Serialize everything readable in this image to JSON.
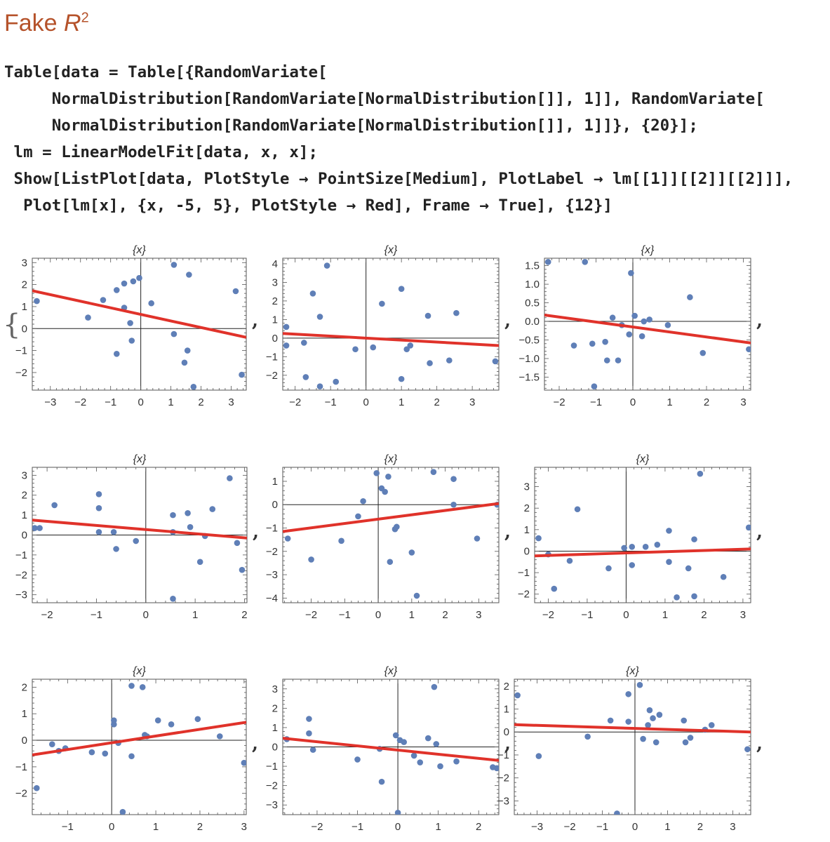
{
  "heading": {
    "main": "Fake ",
    "var": "R",
    "exp": "2"
  },
  "code_lines": [
    "Table[data = Table[{RandomVariate[",
    "     NormalDistribution[RandomVariate[NormalDistribution[]], 1]], RandomVariate[",
    "     NormalDistribution[RandomVariate[NormalDistribution[]], 1]]}, {20}];",
    " lm = LinearModelFit[data, x, x];",
    " Show[ListPlot[data, PlotStyle → PointSize[Medium], PlotLabel → lm[[1]][[2]][[2]]],",
    "  Plot[lm[x], {x, -5, 5}, PlotStyle → Red], Frame → True], {12}]"
  ],
  "output": {
    "open_brace": "{",
    "separator": ","
  },
  "colors": {
    "point": "#5f7fb7",
    "line": "#e0322a",
    "frame": "#555555",
    "axis": "#222222"
  },
  "chart_data": [
    {
      "type": "scatter",
      "title": "{x}",
      "xlim": [
        -3.6,
        3.5
      ],
      "ylim": [
        -2.8,
        3.2
      ],
      "xticks": [
        -3,
        -2,
        -1,
        0,
        1,
        2,
        3
      ],
      "yticks": [
        -2,
        -1,
        0,
        1,
        2,
        3
      ],
      "points": [
        [
          -3.45,
          1.25
        ],
        [
          -1.75,
          0.5
        ],
        [
          -1.25,
          1.3
        ],
        [
          -0.8,
          1.75
        ],
        [
          -0.55,
          2.05
        ],
        [
          -0.25,
          2.15
        ],
        [
          -0.05,
          2.3
        ],
        [
          -0.55,
          0.95
        ],
        [
          -0.35,
          0.25
        ],
        [
          -0.3,
          -0.55
        ],
        [
          -0.8,
          -1.15
        ],
        [
          0.35,
          1.15
        ],
        [
          1.1,
          2.9
        ],
        [
          1.6,
          2.45
        ],
        [
          1.1,
          -0.25
        ],
        [
          1.55,
          -1.0
        ],
        [
          1.45,
          -1.55
        ],
        [
          1.75,
          -2.65
        ],
        [
          3.15,
          1.7
        ],
        [
          3.35,
          -2.1
        ]
      ],
      "line": [
        [
          -3.6,
          1.72
        ],
        [
          3.5,
          -0.4
        ]
      ]
    },
    {
      "type": "scatter",
      "title": "{x}",
      "xlim": [
        -2.35,
        3.75
      ],
      "ylim": [
        -2.8,
        4.3
      ],
      "xticks": [
        -2,
        -1,
        0,
        1,
        2,
        3
      ],
      "yticks": [
        -2,
        -1,
        0,
        1,
        2,
        3,
        4
      ],
      "points": [
        [
          -2.25,
          0.6
        ],
        [
          -2.25,
          -0.4
        ],
        [
          -1.5,
          2.4
        ],
        [
          -1.3,
          1.15
        ],
        [
          -1.1,
          3.9
        ],
        [
          -1.75,
          -0.25
        ],
        [
          -1.7,
          -2.1
        ],
        [
          -1.3,
          -2.6
        ],
        [
          -0.85,
          -2.35
        ],
        [
          -0.3,
          -0.6
        ],
        [
          0.2,
          -0.5
        ],
        [
          0.45,
          1.85
        ],
        [
          1.0,
          2.65
        ],
        [
          1.0,
          -2.2
        ],
        [
          1.15,
          -0.6
        ],
        [
          1.25,
          -0.4
        ],
        [
          1.75,
          1.2
        ],
        [
          1.8,
          -1.35
        ],
        [
          2.55,
          1.35
        ],
        [
          2.35,
          -1.2
        ],
        [
          3.65,
          -1.25
        ]
      ],
      "line": [
        [
          -2.35,
          0.25
        ],
        [
          3.75,
          -0.4
        ]
      ]
    },
    {
      "type": "scatter",
      "title": "{x}",
      "xlim": [
        -2.4,
        3.2
      ],
      "ylim": [
        -1.85,
        1.7
      ],
      "xticks": [
        -2,
        -1,
        0,
        1,
        2,
        3
      ],
      "yticks": [
        -1.5,
        -1.0,
        -0.5,
        0.0,
        0.5,
        1.0,
        1.5
      ],
      "points": [
        [
          -2.3,
          1.6
        ],
        [
          -1.6,
          -0.65
        ],
        [
          -1.3,
          1.6
        ],
        [
          -1.1,
          -0.6
        ],
        [
          -1.05,
          -1.75
        ],
        [
          -0.75,
          -0.55
        ],
        [
          -0.7,
          -1.05
        ],
        [
          -0.55,
          0.1
        ],
        [
          -0.4,
          -1.05
        ],
        [
          -0.3,
          -0.1
        ],
        [
          -0.1,
          -0.35
        ],
        [
          0.05,
          0.15
        ],
        [
          -0.05,
          1.3
        ],
        [
          0.25,
          -0.4
        ],
        [
          0.3,
          0.0
        ],
        [
          0.45,
          0.05
        ],
        [
          0.95,
          -0.1
        ],
        [
          1.55,
          0.65
        ],
        [
          1.9,
          -0.85
        ],
        [
          3.15,
          -0.75
        ]
      ],
      "line": [
        [
          -2.4,
          0.17
        ],
        [
          3.2,
          -0.58
        ]
      ]
    },
    {
      "type": "scatter",
      "title": "{x}",
      "xlim": [
        -2.3,
        2.05
      ],
      "ylim": [
        -3.4,
        3.4
      ],
      "xticks": [
        -2,
        -1,
        0,
        1,
        2
      ],
      "yticks": [
        -3,
        -2,
        -1,
        0,
        1,
        2,
        3
      ],
      "points": [
        [
          -2.25,
          0.35
        ],
        [
          -2.15,
          0.35
        ],
        [
          -1.85,
          1.5
        ],
        [
          -0.95,
          2.05
        ],
        [
          -0.95,
          1.35
        ],
        [
          -0.95,
          0.15
        ],
        [
          -0.65,
          0.15
        ],
        [
          -0.6,
          -0.7
        ],
        [
          -0.2,
          -0.3
        ],
        [
          0.55,
          1.0
        ],
        [
          0.55,
          0.15
        ],
        [
          0.85,
          1.1
        ],
        [
          0.9,
          0.4
        ],
        [
          1.1,
          -1.35
        ],
        [
          1.2,
          -0.05
        ],
        [
          1.35,
          1.3
        ],
        [
          1.7,
          2.85
        ],
        [
          1.85,
          -0.4
        ],
        [
          1.95,
          -1.75
        ],
        [
          0.55,
          -3.2
        ]
      ],
      "line": [
        [
          -2.3,
          0.75
        ],
        [
          2.05,
          -0.15
        ]
      ]
    },
    {
      "type": "scatter",
      "title": "{x}",
      "xlim": [
        -2.85,
        3.6
      ],
      "ylim": [
        -4.2,
        1.6
      ],
      "xticks": [
        -2,
        -1,
        0,
        1,
        2,
        3
      ],
      "yticks": [
        -4,
        -3,
        -2,
        -1,
        0,
        1
      ],
      "points": [
        [
          -2.7,
          -1.45
        ],
        [
          -2.0,
          -2.35
        ],
        [
          -1.1,
          -1.55
        ],
        [
          -0.6,
          -0.5
        ],
        [
          -0.45,
          0.15
        ],
        [
          -0.05,
          1.35
        ],
        [
          0.1,
          0.7
        ],
        [
          0.2,
          0.55
        ],
        [
          0.3,
          1.2
        ],
        [
          0.35,
          -2.45
        ],
        [
          0.5,
          -1.05
        ],
        [
          0.55,
          -0.95
        ],
        [
          1.0,
          -2.05
        ],
        [
          1.15,
          -3.9
        ],
        [
          1.65,
          1.4
        ],
        [
          2.25,
          1.1
        ],
        [
          2.95,
          -1.45
        ],
        [
          2.25,
          0.0
        ],
        [
          3.55,
          0.0
        ]
      ],
      "line": [
        [
          -2.85,
          -1.15
        ],
        [
          3.6,
          0.05
        ]
      ]
    },
    {
      "type": "scatter",
      "title": "{x}",
      "xlim": [
        -2.35,
        3.2
      ],
      "ylim": [
        -2.4,
        3.9
      ],
      "xticks": [
        -2,
        -1,
        0,
        1,
        2,
        3
      ],
      "yticks": [
        -2,
        -1,
        0,
        1,
        2,
        3
      ],
      "points": [
        [
          -2.25,
          0.6
        ],
        [
          -2.0,
          -0.15
        ],
        [
          -1.85,
          -1.75
        ],
        [
          -1.45,
          -0.45
        ],
        [
          -1.25,
          1.95
        ],
        [
          -0.45,
          -0.8
        ],
        [
          -0.05,
          0.15
        ],
        [
          0.15,
          0.2
        ],
        [
          0.15,
          -0.65
        ],
        [
          0.5,
          0.2
        ],
        [
          0.8,
          0.3
        ],
        [
          1.1,
          0.95
        ],
        [
          1.1,
          -0.5
        ],
        [
          1.3,
          -2.15
        ],
        [
          1.6,
          -0.8
        ],
        [
          1.75,
          0.55
        ],
        [
          1.75,
          -2.1
        ],
        [
          1.9,
          3.6
        ],
        [
          2.5,
          -1.2
        ],
        [
          3.15,
          1.1
        ]
      ],
      "line": [
        [
          -2.35,
          -0.22
        ],
        [
          3.2,
          0.1
        ]
      ]
    },
    {
      "type": "scatter",
      "title": "{x}",
      "xlim": [
        -1.8,
        3.05
      ],
      "ylim": [
        -2.8,
        2.3
      ],
      "xticks": [
        -1,
        0,
        1,
        2,
        3
      ],
      "yticks": [
        -2,
        -1,
        0,
        1,
        2
      ],
      "points": [
        [
          -1.7,
          -1.8
        ],
        [
          -1.35,
          -0.15
        ],
        [
          -1.2,
          -0.4
        ],
        [
          -1.05,
          -0.3
        ],
        [
          -0.45,
          -0.45
        ],
        [
          -0.15,
          -0.5
        ],
        [
          0.05,
          0.6
        ],
        [
          0.05,
          0.75
        ],
        [
          0.15,
          -0.1
        ],
        [
          0.25,
          -2.7
        ],
        [
          0.45,
          -0.6
        ],
        [
          0.45,
          2.05
        ],
        [
          0.7,
          2.0
        ],
        [
          0.75,
          0.2
        ],
        [
          0.8,
          0.15
        ],
        [
          1.05,
          0.75
        ],
        [
          1.35,
          0.6
        ],
        [
          1.95,
          0.8
        ],
        [
          2.45,
          0.15
        ],
        [
          3.0,
          -0.85
        ]
      ],
      "line": [
        [
          -1.8,
          -0.55
        ],
        [
          3.05,
          0.68
        ]
      ]
    },
    {
      "type": "scatter",
      "title": "{x}",
      "xlim": [
        -2.85,
        2.5
      ],
      "ylim": [
        -3.5,
        3.5
      ],
      "xticks": [
        -2,
        -1,
        0,
        1,
        2
      ],
      "yticks": [
        -3,
        -2,
        -1,
        0,
        1,
        2,
        3
      ],
      "points": [
        [
          -2.75,
          0.4
        ],
        [
          -2.2,
          1.45
        ],
        [
          -2.2,
          0.7
        ],
        [
          -2.1,
          -0.15
        ],
        [
          -1.0,
          -0.65
        ],
        [
          -0.45,
          -0.1
        ],
        [
          -0.4,
          -1.8
        ],
        [
          -0.05,
          0.6
        ],
        [
          0.05,
          0.35
        ],
        [
          0.15,
          0.25
        ],
        [
          0.0,
          -3.4
        ],
        [
          0.4,
          -0.45
        ],
        [
          0.55,
          -0.8
        ],
        [
          0.75,
          0.45
        ],
        [
          0.9,
          3.1
        ],
        [
          0.95,
          0.15
        ],
        [
          1.05,
          -1.0
        ],
        [
          1.45,
          -0.75
        ],
        [
          2.35,
          -1.05
        ],
        [
          2.45,
          -1.1
        ]
      ],
      "line": [
        [
          -2.85,
          0.45
        ],
        [
          2.5,
          -0.7
        ]
      ]
    },
    {
      "type": "scatter",
      "title": "{x}",
      "xlim": [
        -3.7,
        3.55
      ],
      "ylim": [
        -3.6,
        2.3
      ],
      "xticks": [
        -3,
        -2,
        -1,
        0,
        1,
        2,
        3
      ],
      "yticks": [
        -3,
        -2,
        -1,
        0,
        1,
        2
      ],
      "points": [
        [
          -3.6,
          1.6
        ],
        [
          -2.95,
          -1.05
        ],
        [
          -1.45,
          -0.2
        ],
        [
          -0.75,
          0.5
        ],
        [
          -0.55,
          -3.55
        ],
        [
          -0.2,
          0.45
        ],
        [
          -0.2,
          1.65
        ],
        [
          0.15,
          2.05
        ],
        [
          0.25,
          -0.3
        ],
        [
          0.4,
          0.3
        ],
        [
          0.45,
          0.95
        ],
        [
          0.55,
          0.6
        ],
        [
          0.65,
          -0.45
        ],
        [
          0.75,
          0.75
        ],
        [
          1.5,
          0.5
        ],
        [
          1.55,
          -0.45
        ],
        [
          1.7,
          -0.25
        ],
        [
          2.15,
          0.1
        ],
        [
          2.35,
          0.3
        ],
        [
          3.45,
          -0.75
        ]
      ],
      "line": [
        [
          -3.7,
          0.32
        ],
        [
          3.55,
          0.0
        ]
      ]
    }
  ]
}
